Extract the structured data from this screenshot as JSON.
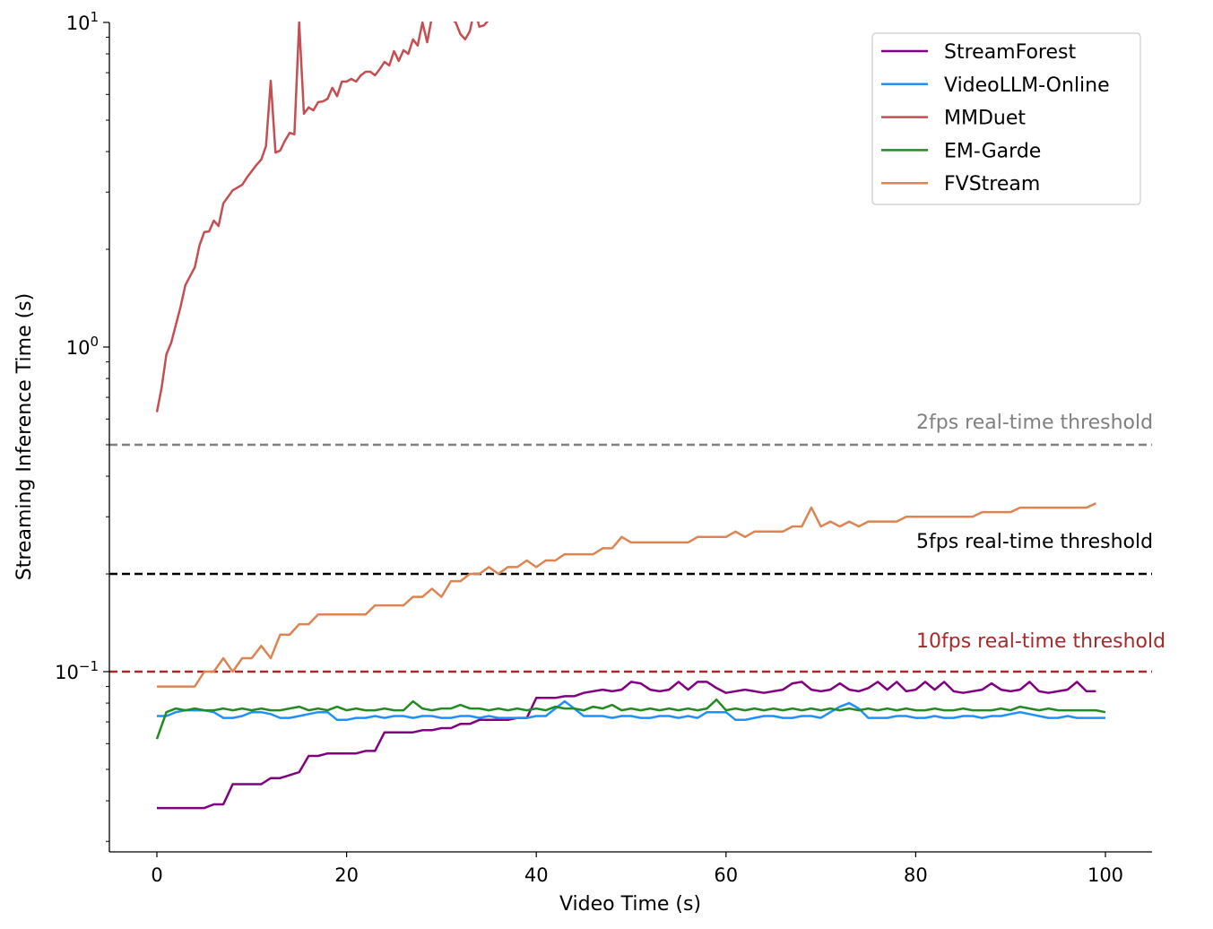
{
  "chart_data": {
    "type": "line",
    "title": "",
    "xlabel": "Video Time (s)",
    "ylabel": "Streaming Inference Time (s)",
    "xlim": [
      -5,
      105
    ],
    "ylim": [
      0.028,
      10
    ],
    "yscale": "log",
    "grid": false,
    "legend_position": "top-right",
    "x_ticks": [
      0,
      20,
      40,
      60,
      80,
      100
    ],
    "x_tick_labels": [
      "0",
      "20",
      "40",
      "60",
      "80",
      "100"
    ],
    "y_ticks": [
      {
        "value": 10,
        "base": "10",
        "exp": "1"
      },
      {
        "value": 1,
        "base": "10",
        "exp": "0"
      },
      {
        "value": 0.1,
        "base": "10",
        "exp": "−1"
      }
    ],
    "thresholds": [
      {
        "label": "2fps real-time threshold",
        "value": 0.5,
        "color": "#808080"
      },
      {
        "label": "5fps real-time threshold",
        "value": 0.2,
        "color": "#000000"
      },
      {
        "label": "10fps real-time threshold",
        "value": 0.1,
        "color": "#a52a2a"
      }
    ],
    "series": [
      {
        "name": "StreamForest",
        "color": "#800080",
        "x": [
          0,
          1,
          2,
          3,
          4,
          5,
          6,
          7,
          8,
          9,
          10,
          11,
          12,
          13,
          14,
          15,
          16,
          17,
          18,
          19,
          20,
          21,
          22,
          23,
          24,
          25,
          26,
          27,
          28,
          29,
          30,
          31,
          32,
          33,
          34,
          35,
          36,
          37,
          38,
          39,
          40,
          41,
          42,
          43,
          44,
          45,
          46,
          47,
          48,
          49,
          50,
          51,
          52,
          53,
          54,
          55,
          56,
          57,
          58,
          59,
          60,
          61,
          62,
          63,
          64,
          65,
          66,
          67,
          68,
          69,
          70,
          71,
          72,
          73,
          74,
          75,
          76,
          77,
          78,
          79,
          80,
          81,
          82,
          83,
          84,
          85,
          86,
          87,
          88,
          89,
          90,
          91,
          92,
          93,
          94,
          95,
          96,
          97,
          98,
          99
        ],
        "y": [
          0.038,
          0.038,
          0.038,
          0.038,
          0.038,
          0.038,
          0.039,
          0.039,
          0.045,
          0.045,
          0.045,
          0.045,
          0.047,
          0.047,
          0.048,
          0.049,
          0.055,
          0.055,
          0.056,
          0.056,
          0.056,
          0.056,
          0.057,
          0.057,
          0.065,
          0.065,
          0.065,
          0.065,
          0.066,
          0.066,
          0.067,
          0.067,
          0.069,
          0.069,
          0.071,
          0.071,
          0.071,
          0.071,
          0.072,
          0.072,
          0.083,
          0.083,
          0.083,
          0.084,
          0.084,
          0.086,
          0.087,
          0.088,
          0.087,
          0.088,
          0.093,
          0.092,
          0.088,
          0.087,
          0.088,
          0.093,
          0.088,
          0.093,
          0.093,
          0.089,
          0.086,
          0.087,
          0.088,
          0.087,
          0.086,
          0.087,
          0.088,
          0.092,
          0.093,
          0.088,
          0.087,
          0.088,
          0.092,
          0.088,
          0.087,
          0.089,
          0.093,
          0.088,
          0.093,
          0.087,
          0.088,
          0.093,
          0.088,
          0.093,
          0.087,
          0.086,
          0.087,
          0.088,
          0.092,
          0.088,
          0.087,
          0.088,
          0.093,
          0.087,
          0.086,
          0.087,
          0.088,
          0.093,
          0.087,
          0.087
        ]
      },
      {
        "name": "VideoLLM-Online",
        "color": "#1e90ff",
        "x": [
          0,
          1,
          2,
          3,
          4,
          5,
          6,
          7,
          8,
          9,
          10,
          11,
          12,
          13,
          14,
          15,
          16,
          17,
          18,
          19,
          20,
          21,
          22,
          23,
          24,
          25,
          26,
          27,
          28,
          29,
          30,
          31,
          32,
          33,
          34,
          35,
          36,
          37,
          38,
          39,
          40,
          41,
          42,
          43,
          44,
          45,
          46,
          47,
          48,
          49,
          50,
          51,
          52,
          53,
          54,
          55,
          56,
          57,
          58,
          59,
          60,
          61,
          62,
          63,
          64,
          65,
          66,
          67,
          68,
          69,
          70,
          71,
          72,
          73,
          74,
          75,
          76,
          77,
          78,
          79,
          80,
          81,
          82,
          83,
          84,
          85,
          86,
          87,
          88,
          89,
          90,
          91,
          92,
          93,
          94,
          95,
          96,
          97,
          98,
          99,
          100
        ],
        "y": [
          0.073,
          0.073,
          0.075,
          0.076,
          0.076,
          0.076,
          0.075,
          0.072,
          0.072,
          0.073,
          0.075,
          0.075,
          0.074,
          0.072,
          0.072,
          0.073,
          0.074,
          0.075,
          0.075,
          0.071,
          0.071,
          0.072,
          0.072,
          0.073,
          0.072,
          0.073,
          0.073,
          0.072,
          0.073,
          0.073,
          0.072,
          0.072,
          0.073,
          0.073,
          0.072,
          0.073,
          0.072,
          0.072,
          0.072,
          0.072,
          0.073,
          0.073,
          0.077,
          0.081,
          0.077,
          0.073,
          0.073,
          0.073,
          0.072,
          0.073,
          0.073,
          0.072,
          0.072,
          0.073,
          0.073,
          0.072,
          0.073,
          0.072,
          0.075,
          0.075,
          0.075,
          0.071,
          0.071,
          0.072,
          0.073,
          0.073,
          0.072,
          0.072,
          0.073,
          0.073,
          0.072,
          0.075,
          0.078,
          0.08,
          0.077,
          0.072,
          0.072,
          0.072,
          0.073,
          0.073,
          0.072,
          0.072,
          0.073,
          0.072,
          0.072,
          0.073,
          0.073,
          0.072,
          0.073,
          0.073,
          0.074,
          0.075,
          0.074,
          0.073,
          0.072,
          0.072,
          0.073,
          0.072,
          0.072,
          0.072,
          0.072
        ]
      },
      {
        "name": "MMDuet",
        "color": "#c44e52",
        "x": [
          0,
          0.5,
          1,
          1.5,
          2.5,
          3,
          4,
          4.5,
          5,
          5.5,
          6,
          6.5,
          7,
          8,
          9,
          9.5,
          10,
          10.5,
          11,
          11.5,
          12,
          12.5,
          13,
          13.5,
          14,
          14.5,
          15,
          15.5,
          16,
          16.5,
          17,
          17.5,
          18,
          18.5,
          19,
          19.5,
          20,
          20.5,
          21,
          21.5,
          22,
          22.5,
          23,
          23.5,
          24,
          24.5,
          25,
          25.5,
          26,
          26.5,
          27,
          27.5,
          28,
          28.5,
          29,
          29.5,
          30,
          30.5,
          31,
          31.5,
          32,
          32.5,
          33,
          33.5,
          34,
          34.5,
          35,
          35.5
        ],
        "y": [
          0.63,
          0.75,
          0.95,
          1.03,
          1.33,
          1.55,
          1.76,
          2.06,
          2.26,
          2.27,
          2.45,
          2.36,
          2.77,
          3.04,
          3.16,
          3.33,
          3.48,
          3.64,
          3.78,
          4.16,
          6.61,
          3.97,
          4.03,
          4.32,
          4.57,
          4.52,
          10.0,
          5.23,
          5.47,
          5.36,
          5.68,
          5.71,
          5.82,
          6.29,
          5.93,
          6.57,
          6.57,
          6.7,
          6.57,
          6.87,
          7.05,
          7.05,
          6.87,
          7.18,
          7.56,
          7.37,
          8.16,
          7.61,
          8.21,
          8.0,
          8.87,
          8.48,
          10.0,
          8.69,
          10.4,
          10.8,
          11.0,
          10.6,
          10.3,
          10.0,
          9.2,
          8.87,
          9.4,
          11.0,
          9.7,
          9.8,
          10.2,
          10.6
        ]
      },
      {
        "name": "EM-Garde",
        "color": "#228b22",
        "x": [
          0,
          1,
          2,
          3,
          4,
          5,
          6,
          7,
          8,
          9,
          10,
          11,
          12,
          13,
          14,
          15,
          16,
          17,
          18,
          19,
          20,
          21,
          22,
          23,
          24,
          25,
          26,
          27,
          28,
          29,
          30,
          31,
          32,
          33,
          34,
          35,
          36,
          37,
          38,
          39,
          40,
          41,
          42,
          43,
          44,
          45,
          46,
          47,
          48,
          49,
          50,
          51,
          52,
          53,
          54,
          55,
          56,
          57,
          58,
          59,
          60,
          61,
          62,
          63,
          64,
          65,
          66,
          67,
          68,
          69,
          70,
          71,
          72,
          73,
          74,
          75,
          76,
          77,
          78,
          79,
          80,
          81,
          82,
          83,
          84,
          85,
          86,
          87,
          88,
          89,
          90,
          91,
          92,
          93,
          94,
          95,
          96,
          97,
          98,
          99,
          100
        ],
        "y": [
          0.062,
          0.075,
          0.077,
          0.076,
          0.077,
          0.076,
          0.076,
          0.077,
          0.076,
          0.077,
          0.076,
          0.077,
          0.076,
          0.076,
          0.077,
          0.078,
          0.076,
          0.077,
          0.076,
          0.078,
          0.076,
          0.077,
          0.076,
          0.076,
          0.077,
          0.076,
          0.076,
          0.081,
          0.077,
          0.076,
          0.077,
          0.077,
          0.079,
          0.077,
          0.077,
          0.076,
          0.077,
          0.076,
          0.077,
          0.076,
          0.077,
          0.076,
          0.078,
          0.077,
          0.077,
          0.076,
          0.078,
          0.077,
          0.079,
          0.076,
          0.077,
          0.076,
          0.077,
          0.076,
          0.077,
          0.076,
          0.077,
          0.076,
          0.077,
          0.082,
          0.076,
          0.077,
          0.076,
          0.077,
          0.076,
          0.077,
          0.076,
          0.077,
          0.076,
          0.077,
          0.076,
          0.077,
          0.076,
          0.077,
          0.076,
          0.077,
          0.076,
          0.077,
          0.076,
          0.077,
          0.076,
          0.076,
          0.077,
          0.076,
          0.076,
          0.077,
          0.076,
          0.076,
          0.076,
          0.077,
          0.076,
          0.078,
          0.077,
          0.076,
          0.077,
          0.076,
          0.076,
          0.076,
          0.076,
          0.076,
          0.075
        ]
      },
      {
        "name": "FVStream",
        "color": "#dd8452",
        "x": [
          0,
          1,
          2,
          3,
          4,
          5,
          6,
          7,
          8,
          9,
          10,
          11,
          12,
          13,
          14,
          15,
          16,
          17,
          18,
          19,
          20,
          21,
          22,
          23,
          24,
          25,
          26,
          27,
          28,
          29,
          30,
          31,
          32,
          33,
          34,
          35,
          36,
          37,
          38,
          39,
          40,
          41,
          42,
          43,
          44,
          45,
          46,
          47,
          48,
          49,
          50,
          51,
          52,
          53,
          54,
          55,
          56,
          57,
          58,
          59,
          60,
          61,
          62,
          63,
          64,
          65,
          66,
          67,
          68,
          69,
          70,
          71,
          72,
          73,
          74,
          75,
          76,
          77,
          78,
          79,
          80,
          81,
          82,
          83,
          84,
          85,
          86,
          87,
          88,
          89,
          90,
          91,
          92,
          93,
          94,
          95,
          96,
          97,
          98,
          99
        ],
        "y": [
          0.09,
          0.09,
          0.09,
          0.09,
          0.09,
          0.1,
          0.1,
          0.11,
          0.1,
          0.11,
          0.11,
          0.12,
          0.11,
          0.13,
          0.13,
          0.14,
          0.14,
          0.15,
          0.15,
          0.15,
          0.15,
          0.15,
          0.15,
          0.16,
          0.16,
          0.16,
          0.16,
          0.17,
          0.17,
          0.18,
          0.17,
          0.19,
          0.19,
          0.2,
          0.2,
          0.21,
          0.2,
          0.21,
          0.21,
          0.22,
          0.21,
          0.22,
          0.22,
          0.23,
          0.23,
          0.23,
          0.23,
          0.24,
          0.24,
          0.26,
          0.25,
          0.25,
          0.25,
          0.25,
          0.25,
          0.25,
          0.25,
          0.26,
          0.26,
          0.26,
          0.26,
          0.27,
          0.26,
          0.27,
          0.27,
          0.27,
          0.27,
          0.28,
          0.28,
          0.32,
          0.28,
          0.29,
          0.28,
          0.29,
          0.28,
          0.29,
          0.29,
          0.29,
          0.29,
          0.3,
          0.3,
          0.3,
          0.3,
          0.3,
          0.3,
          0.3,
          0.3,
          0.31,
          0.31,
          0.31,
          0.31,
          0.32,
          0.32,
          0.32,
          0.32,
          0.32,
          0.32,
          0.32,
          0.32,
          0.33
        ]
      }
    ]
  }
}
